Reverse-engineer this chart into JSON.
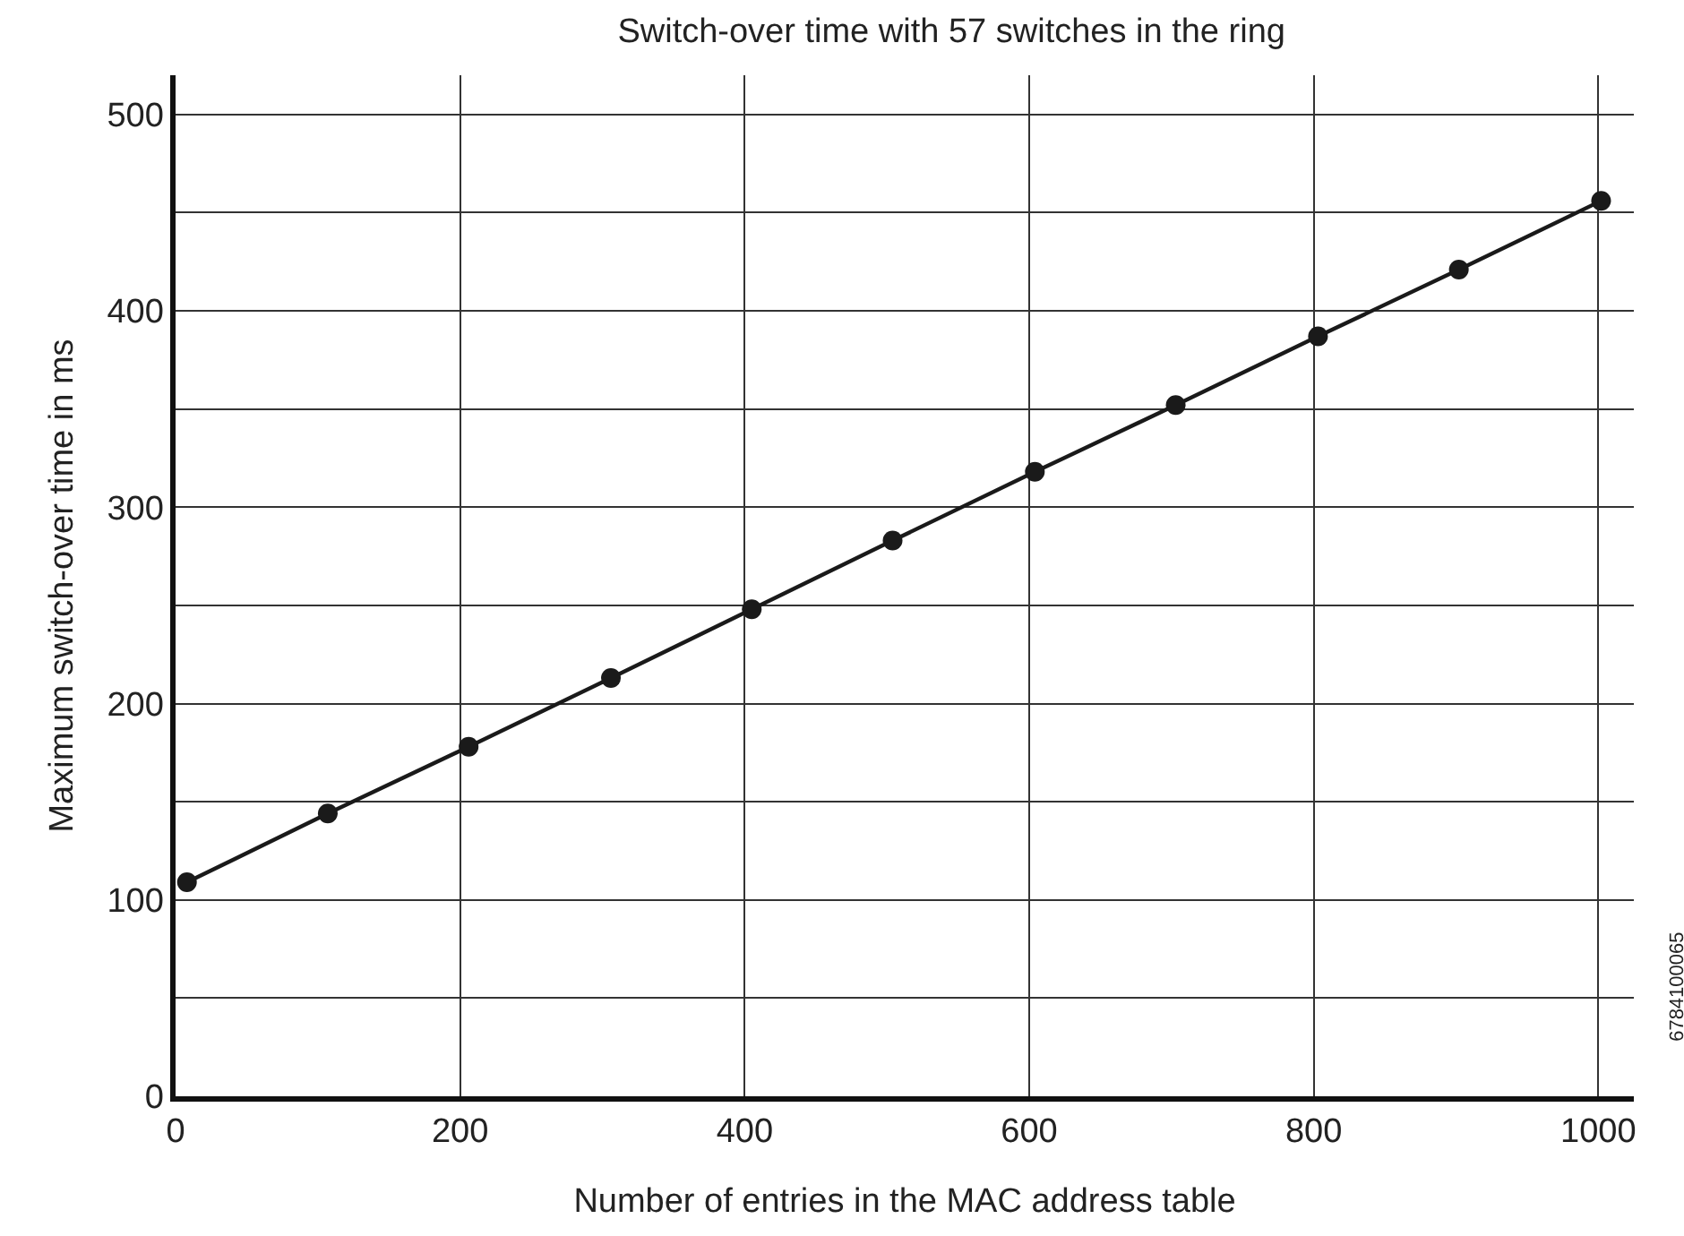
{
  "chart_data": {
    "type": "line",
    "title": "Switch-over time with 57 switches in the ring",
    "xlabel": "Number of entries in the MAC address table",
    "ylabel": "Maximum switch-over time in ms",
    "x": [
      8,
      107,
      206,
      306,
      405,
      504,
      604,
      703,
      803,
      902,
      1002
    ],
    "series": [
      {
        "color": "#1a1a1a",
        "values": [
          109,
          144,
          178,
          213,
          248,
          283,
          318,
          352,
          387,
          421,
          456
        ]
      }
    ],
    "xlim": [
      0,
      1025
    ],
    "ylim": [
      0,
      520
    ],
    "xticks": [
      0,
      200,
      400,
      600,
      800,
      1000
    ],
    "yticks": [
      0,
      {
        "value": 50,
        "label": null
      },
      100,
      {
        "value": 150,
        "label": null
      },
      200,
      {
        "value": 250,
        "label": null
      },
      300,
      {
        "value": 350,
        "label": null
      },
      400,
      {
        "value": 450,
        "label": null
      },
      500
    ],
    "grid": true,
    "marker": "circle",
    "line_style": "solid",
    "annotations": [
      "6784100065"
    ]
  }
}
